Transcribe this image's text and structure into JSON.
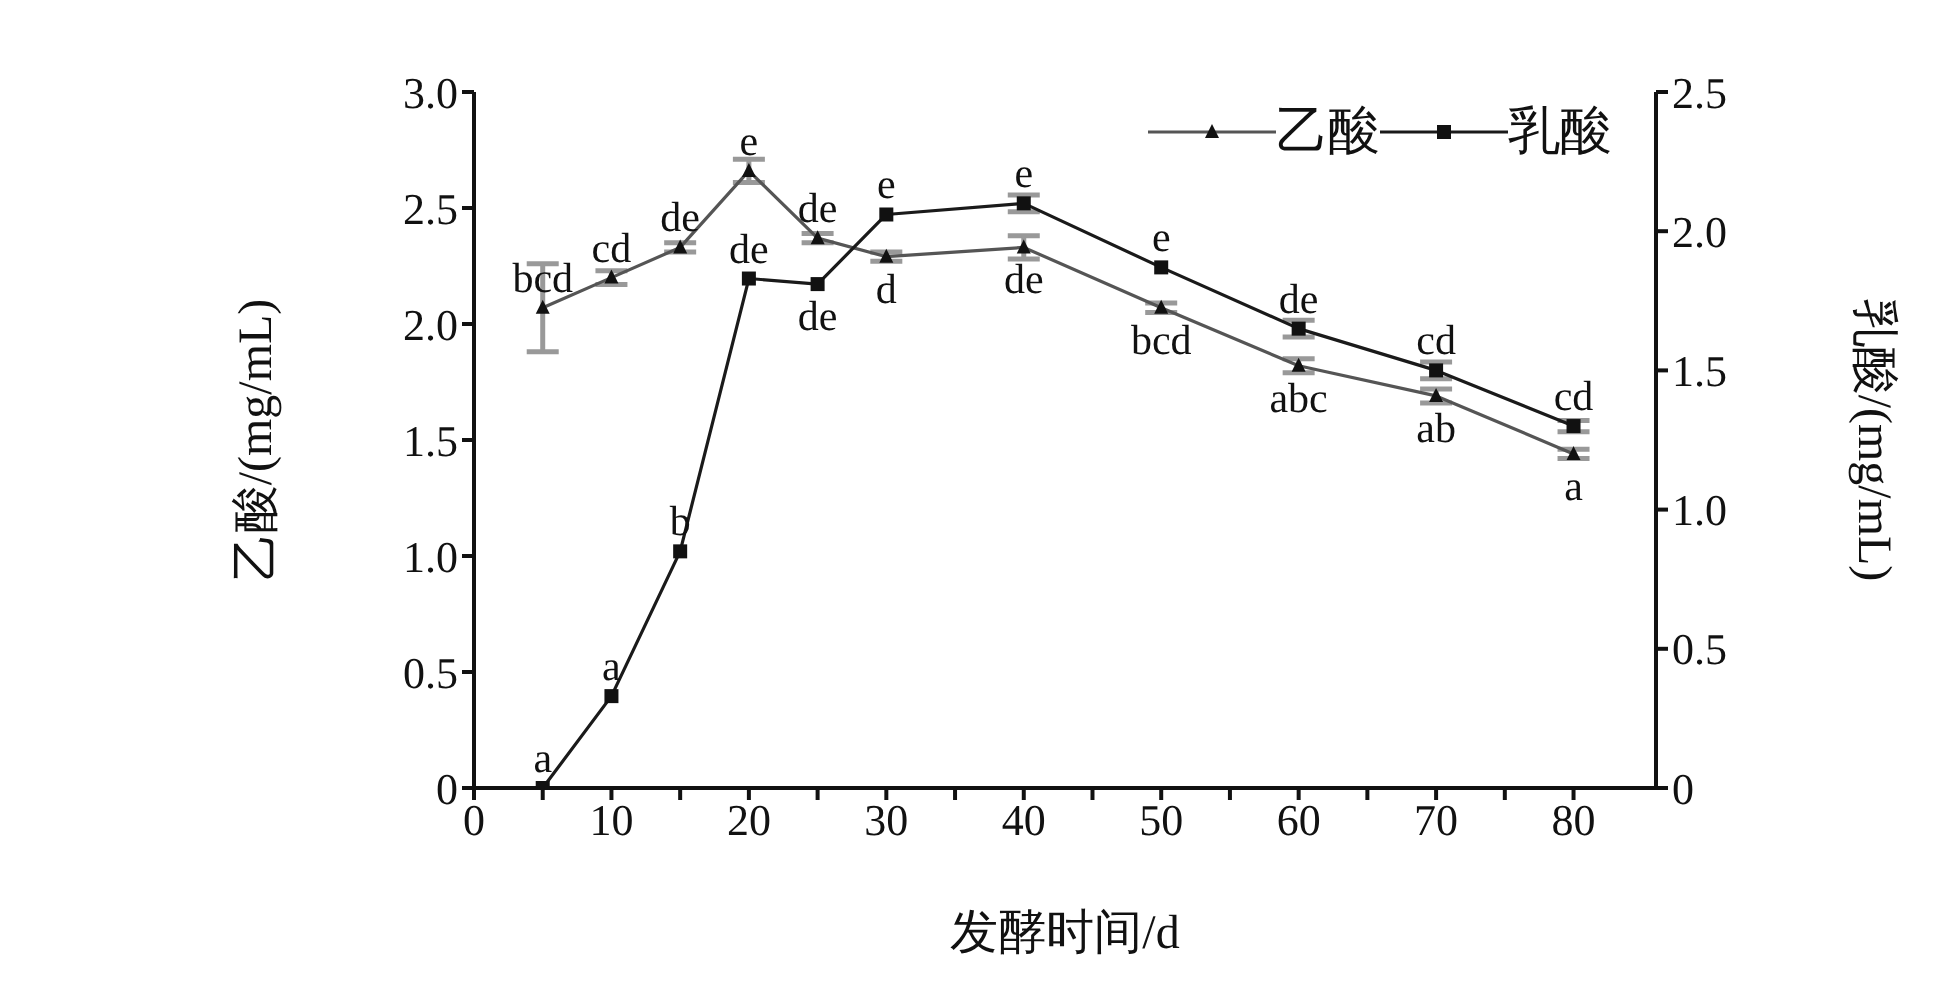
{
  "chart_data": {
    "type": "line",
    "xlabel": "发酵时间/d",
    "ylabel": "乙酸/(mg/mL)",
    "y2label": "乳酸/(mg/mL)",
    "x": [
      5,
      10,
      15,
      20,
      25,
      30,
      40,
      50,
      60,
      70,
      80
    ],
    "series": [
      {
        "name": "乙酸",
        "color": "#555555",
        "marker": "triangle",
        "values": [
          2.07,
          2.2,
          2.33,
          2.66,
          2.37,
          2.29,
          2.33,
          2.07,
          1.82,
          1.69,
          1.44
        ],
        "errors": [
          0.19,
          0.03,
          0.02,
          0.05,
          0.02,
          0.02,
          0.05,
          0.02,
          0.03,
          0.03,
          0.02
        ],
        "value_labels": [
          "bcd",
          "cd",
          "de",
          "e",
          "de",
          "d",
          "de",
          "bcd",
          "abc",
          "ab",
          "a"
        ]
      },
      {
        "name": "乳酸",
        "color": "#1a1a1a",
        "marker": "square",
        "axis": "y2",
        "values": [
          0,
          0.33,
          0.85,
          1.83,
          1.81,
          2.06,
          2.1,
          1.87,
          1.65,
          1.5,
          1.3
        ],
        "errors": [
          null,
          null,
          null,
          null,
          null,
          null,
          0.03,
          null,
          0.03,
          0.03,
          0.02
        ],
        "value_labels": [
          "a",
          "a",
          "b",
          "de",
          "de",
          "e",
          "e",
          "e",
          "de",
          "cd",
          "cd"
        ]
      }
    ],
    "xlim": [
      0,
      86
    ],
    "xticks": [
      0,
      {
        "value": 5,
        "label": null
      },
      10,
      {
        "value": 15,
        "label": null
      },
      20,
      {
        "value": 25,
        "label": null
      },
      30,
      {
        "value": 35,
        "label": null
      },
      40,
      {
        "value": 45,
        "label": null
      },
      50,
      {
        "value": 55,
        "label": null
      },
      60,
      {
        "value": 65,
        "label": null
      },
      70,
      {
        "value": 75,
        "label": null
      },
      80
    ],
    "ylim": [
      0,
      3
    ],
    "yticks": [
      0,
      0.5,
      {
        "value": 1,
        "label": "1.0"
      },
      1.5,
      {
        "value": 2,
        "label": "2.0"
      },
      2.5,
      {
        "value": 3,
        "label": "3.0"
      }
    ],
    "y2lim": [
      0,
      2.5
    ],
    "y2ticks": [
      0,
      0.5,
      {
        "value": 1,
        "label": "1.0"
      },
      1.5,
      {
        "value": 2,
        "label": "2.0"
      },
      2.5
    ],
    "legend": "top right",
    "grid": false,
    "line_style": "solid"
  }
}
